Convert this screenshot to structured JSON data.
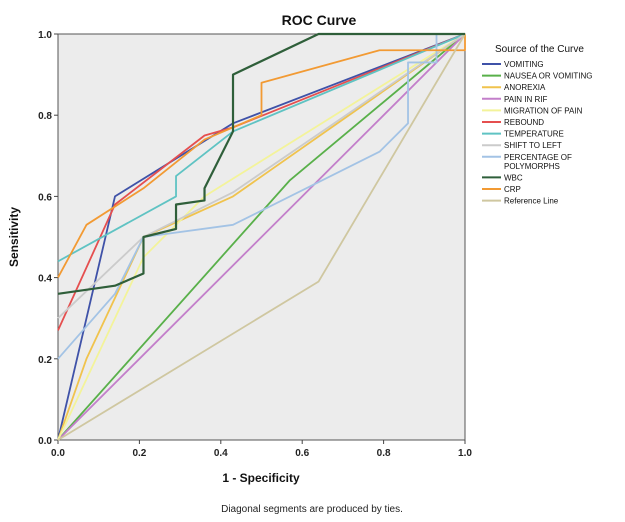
{
  "chart_data": {
    "type": "line",
    "title": "ROC Curve",
    "xlabel": "1 - Specificity",
    "ylabel": "Sensitivity",
    "xlim": [
      0,
      1
    ],
    "ylim": [
      0,
      1
    ],
    "x_ticks": [
      "0.0",
      "0.2",
      "0.4",
      "0.6",
      "0.8",
      "1.0"
    ],
    "y_ticks": [
      "0.0",
      "0.2",
      "0.4",
      "0.6",
      "0.8",
      "1.0"
    ],
    "grid": false,
    "plot_background": "#ececec",
    "legend_title": "Source of the Curve",
    "legend_position": "right",
    "footnote": "Diagonal segments are produced by ties.",
    "series": [
      {
        "name": "VOMITING",
        "color": "#3f52a8",
        "points": [
          [
            0,
            0
          ],
          [
            0.14,
            0.6
          ],
          [
            0.43,
            0.78
          ],
          [
            1,
            1
          ]
        ]
      },
      {
        "name": "NAUSEA OR VOMITING",
        "color": "#59b04a",
        "points": [
          [
            0,
            0
          ],
          [
            0.57,
            0.64
          ],
          [
            1,
            1
          ]
        ]
      },
      {
        "name": "ANOREXIA",
        "color": "#f0c34d",
        "points": [
          [
            0,
            0
          ],
          [
            0.07,
            0.2
          ],
          [
            0.21,
            0.5
          ],
          [
            0.43,
            0.6
          ],
          [
            1,
            1
          ]
        ]
      },
      {
        "name": "PAIN IN RIF",
        "color": "#c37fca",
        "points": [
          [
            0,
            0
          ],
          [
            1,
            1
          ]
        ]
      },
      {
        "name": "MIGRATION OF PAIN",
        "color": "#f3f39a",
        "points": [
          [
            0,
            0
          ],
          [
            0.21,
            0.45
          ],
          [
            0.36,
            0.6
          ],
          [
            1,
            1
          ]
        ]
      },
      {
        "name": "REBOUND",
        "color": "#e54f4f",
        "points": [
          [
            0,
            0.27
          ],
          [
            0.14,
            0.58
          ],
          [
            0.36,
            0.75
          ],
          [
            0.43,
            0.77
          ],
          [
            1,
            1
          ]
        ]
      },
      {
        "name": "TEMPERATURE",
        "color": "#5fc3c3",
        "points": [
          [
            0,
            0.44
          ],
          [
            0.29,
            0.6
          ],
          [
            0.29,
            0.65
          ],
          [
            0.43,
            0.76
          ],
          [
            1,
            1
          ]
        ]
      },
      {
        "name": "SHIFT TO LEFT",
        "color": "#cbcbcb",
        "points": [
          [
            0,
            0.3
          ],
          [
            0.21,
            0.5
          ],
          [
            0.43,
            0.61
          ],
          [
            1,
            1
          ]
        ]
      },
      {
        "name": "PERCENTAGE OF POLYMORPHS",
        "color": "#a3c3e5",
        "points": [
          [
            0,
            0.2
          ],
          [
            0.14,
            0.36
          ],
          [
            0.21,
            0.5
          ],
          [
            0.43,
            0.53
          ],
          [
            0.79,
            0.71
          ],
          [
            0.86,
            0.78
          ],
          [
            0.86,
            0.93
          ],
          [
            0.93,
            0.93
          ],
          [
            0.93,
            0.96
          ],
          [
            0.93,
            1
          ],
          [
            1,
            1
          ]
        ]
      },
      {
        "name": "WBC",
        "color": "#2f5f3a",
        "points": [
          [
            0,
            0.36
          ],
          [
            0.14,
            0.38
          ],
          [
            0.21,
            0.41
          ],
          [
            0.21,
            0.5
          ],
          [
            0.29,
            0.52
          ],
          [
            0.29,
            0.58
          ],
          [
            0.36,
            0.59
          ],
          [
            0.36,
            0.62
          ],
          [
            0.43,
            0.76
          ],
          [
            0.43,
            0.9
          ],
          [
            0.64,
            1
          ],
          [
            1,
            1
          ]
        ]
      },
      {
        "name": "CRP",
        "color": "#f29a33",
        "points": [
          [
            0,
            0.4
          ],
          [
            0.07,
            0.53
          ],
          [
            0.21,
            0.62
          ],
          [
            0.36,
            0.74
          ],
          [
            0.5,
            0.8
          ],
          [
            0.5,
            0.88
          ],
          [
            0.79,
            0.96
          ],
          [
            1,
            0.96
          ],
          [
            1,
            1
          ]
        ]
      },
      {
        "name": "Reference Line",
        "color": "#cfc7a0",
        "points": [
          [
            0,
            0
          ],
          [
            0.64,
            0.39
          ],
          [
            1,
            1
          ]
        ]
      }
    ]
  }
}
